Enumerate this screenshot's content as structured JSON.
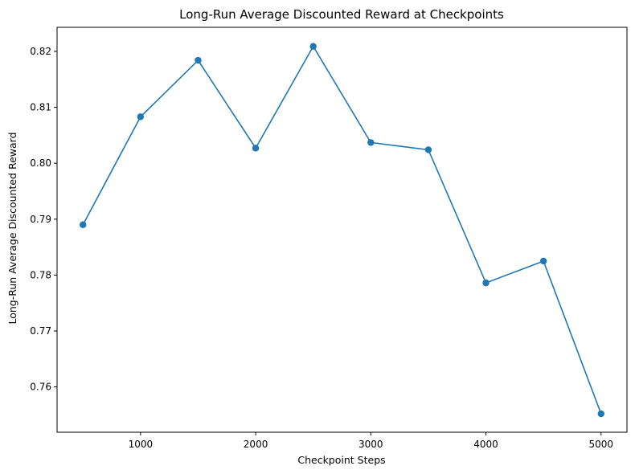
{
  "chart_data": {
    "type": "line",
    "title": "Long-Run Average Discounted Reward at Checkpoints",
    "xlabel": "Checkpoint Steps",
    "ylabel": "Long-Run Average Discounted Reward",
    "x": [
      500,
      1000,
      1500,
      2000,
      2500,
      3000,
      3500,
      4000,
      4500,
      5000
    ],
    "series": [
      {
        "values": [
          0.789,
          0.8083,
          0.8184,
          0.8027,
          0.8209,
          0.8037,
          0.8024,
          0.7786,
          0.7825,
          0.7552
        ],
        "color": "#1f77b4",
        "marker": "circle"
      }
    ],
    "xticks": [
      1000,
      2000,
      3000,
      4000,
      5000
    ],
    "xtick_labels": [
      "1000",
      "2000",
      "3000",
      "4000",
      "5000"
    ],
    "yticks": [
      0.76,
      0.77,
      0.78,
      0.79,
      0.8,
      0.81,
      0.82
    ],
    "ytick_labels": [
      "0.76",
      "0.77",
      "0.78",
      "0.79",
      "0.80",
      "0.81",
      "0.82"
    ],
    "xlim": [
      275,
      5225
    ],
    "ylim": [
      0.7519,
      0.8243
    ],
    "grid": false,
    "legend": "none"
  }
}
